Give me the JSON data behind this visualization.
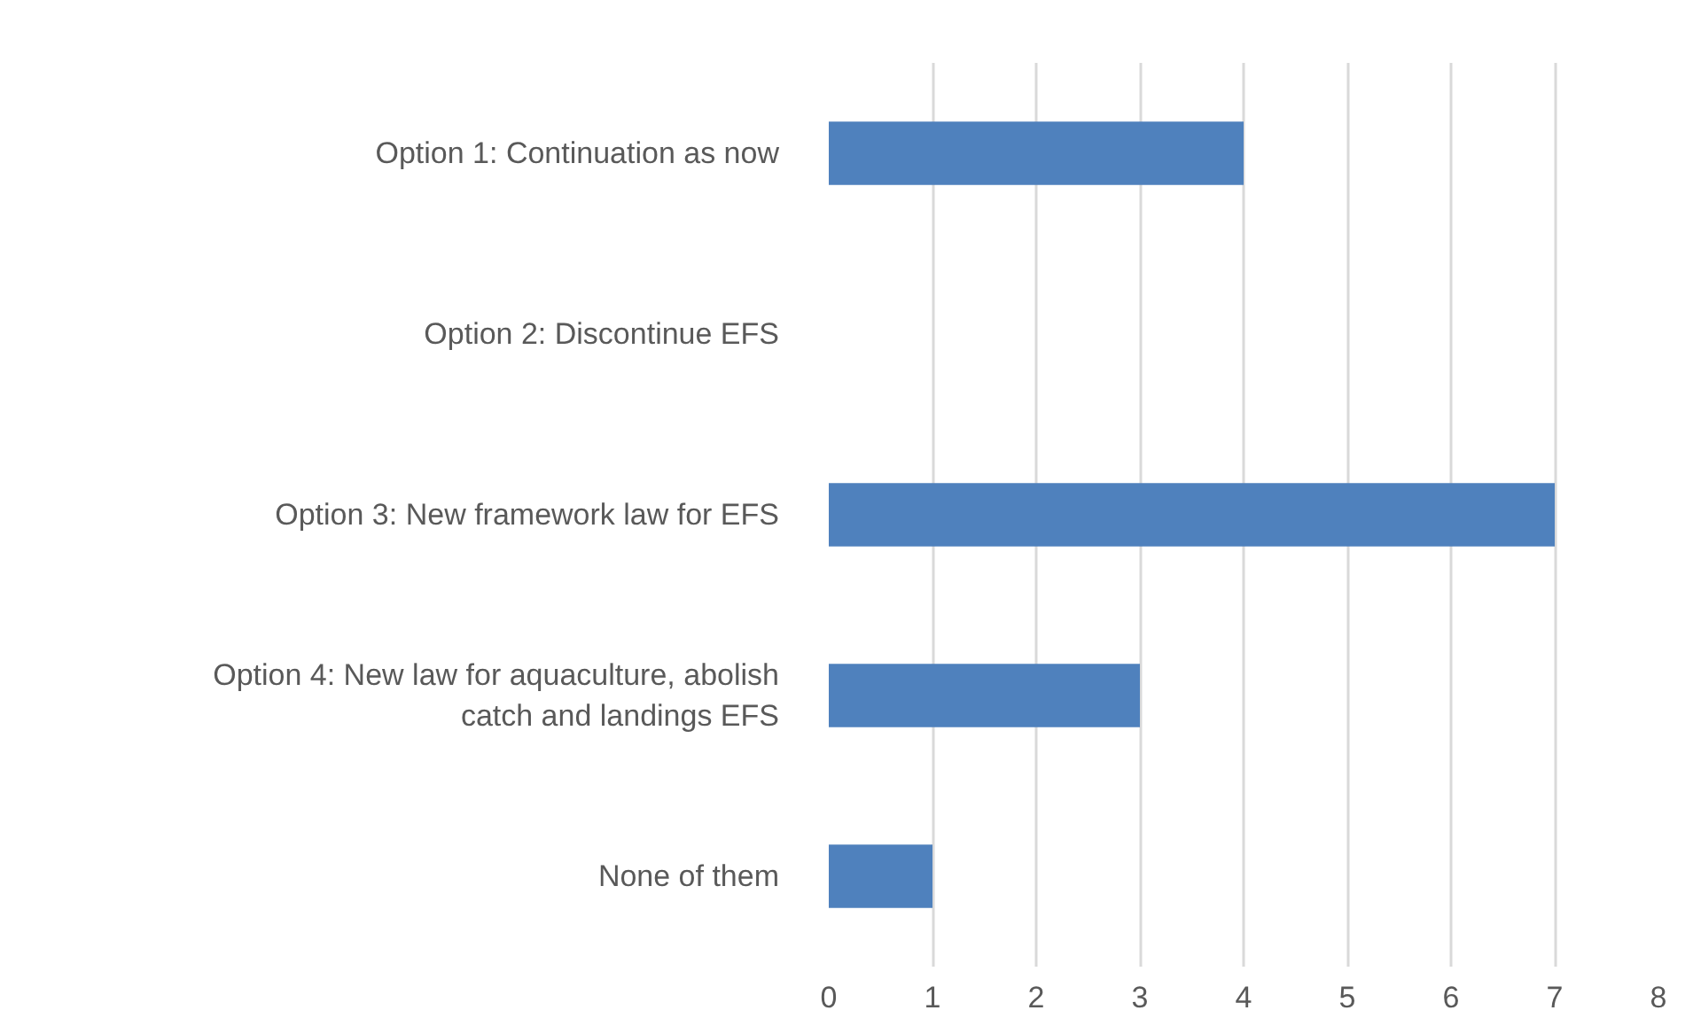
{
  "chart_data": {
    "type": "bar",
    "orientation": "horizontal",
    "categories": [
      "Option 1: Continuation as now",
      "Option 2: Discontinue EFS",
      "Option 3: New framework law for EFS",
      "Option 4: New law for aquaculture, abolish catch and landings EFS",
      "None of them"
    ],
    "values": [
      4,
      0,
      7,
      3,
      1
    ],
    "color": "#4f81bd",
    "xlim": [
      0,
      8
    ],
    "xticks": [
      0,
      1,
      2,
      3,
      4,
      5,
      6,
      7,
      8
    ],
    "grid": "x"
  }
}
